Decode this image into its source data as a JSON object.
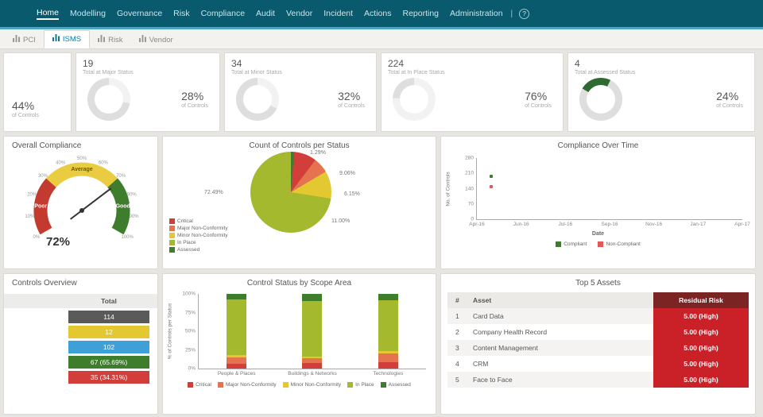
{
  "nav": {
    "items": [
      {
        "label": "Home",
        "active": true
      },
      {
        "label": "Modelling",
        "active": false
      },
      {
        "label": "Governance",
        "active": false
      },
      {
        "label": "Risk",
        "active": false
      },
      {
        "label": "Compliance",
        "active": false
      },
      {
        "label": "Audit",
        "active": false
      },
      {
        "label": "Vendor",
        "active": false
      },
      {
        "label": "Incident",
        "active": false
      },
      {
        "label": "Actions",
        "active": false
      },
      {
        "label": "Reporting",
        "active": false
      },
      {
        "label": "Administration",
        "active": false
      }
    ],
    "separator": "|",
    "help_label": "?"
  },
  "tabs": [
    {
      "label": "PCI",
      "active": false
    },
    {
      "label": "ISMS",
      "active": true
    },
    {
      "label": "Risk",
      "active": false
    },
    {
      "label": "Vendor",
      "active": false
    }
  ],
  "kpi_cards": [
    {
      "clipped": true,
      "count": "",
      "subtitle": "",
      "pct": "44%",
      "pct_caption": "of Controls",
      "pct_value": 44,
      "ring_color": "#dedede",
      "arc_color": "#f2f2f2",
      "arc_from": 0
    },
    {
      "clipped": false,
      "count": "19",
      "subtitle": "Total at Major Status",
      "pct": "28%",
      "pct_caption": "of Controls",
      "pct_value": 28,
      "ring_color": "#dedede",
      "arc_color": "#f2f2f2",
      "arc_from": 0
    },
    {
      "clipped": false,
      "count": "34",
      "subtitle": "Total at Minor Status",
      "pct": "32%",
      "pct_caption": "of Controls",
      "pct_value": 32,
      "ring_color": "#dedede",
      "arc_color": "#f2f2f2",
      "arc_from": 0
    },
    {
      "clipped": false,
      "count": "224",
      "subtitle": "Total at In Place Status",
      "pct": "76%",
      "pct_caption": "of Controls",
      "pct_value": 76,
      "ring_color": "#dedede",
      "arc_color": "#f2f2f2",
      "arc_from": 0
    },
    {
      "clipped": false,
      "count": "4",
      "subtitle": "Total at Assessed Status",
      "pct": "24%",
      "pct_caption": "of Controls",
      "pct_value": 24,
      "ring_color": "#dedede",
      "arc_color": "#2f6b31",
      "arc_from": 300
    }
  ],
  "gauge": {
    "type": "gauge",
    "title": "Overall Compliance",
    "value": 72,
    "value_label": "72%",
    "tick_labels": [
      "0%",
      "10%",
      "20%",
      "30%",
      "40%",
      "50%",
      "60%",
      "70%",
      "80%",
      "90%",
      "100%"
    ],
    "zones": [
      {
        "label": "Poor",
        "color": "#c23b2e",
        "label_color": "#ffffff",
        "from": 0,
        "to": 30
      },
      {
        "label": "Average",
        "color": "#e9cc3f",
        "label_color": "#6b5a10",
        "from": 30,
        "to": 70
      },
      {
        "label": "Good",
        "color": "#3e7d2c",
        "label_color": "#ffffff",
        "from": 70,
        "to": 100
      }
    ]
  },
  "pie_chart": {
    "type": "pie",
    "title": "Count of Controls per Status",
    "slices": [
      {
        "name": "Assessed",
        "value": 1.29,
        "label": "1.29%",
        "color": "#3e7d2c"
      },
      {
        "name": "Critical",
        "value": 9.06,
        "label": "9.06%",
        "color": "#d23f3a"
      },
      {
        "name": "Major Non-Conformity",
        "value": 6.15,
        "label": "6.15%",
        "color": "#e57350"
      },
      {
        "name": "Minor Non-Conformity",
        "value": 11.0,
        "label": "11.00%",
        "color": "#e3c832"
      },
      {
        "name": "In Place",
        "value": 72.49,
        "label": "72.49%",
        "color": "#a4b92e"
      }
    ]
  },
  "line_chart": {
    "type": "line",
    "title": "Compliance Over Time",
    "ylabel": "No. of Controls",
    "xlabel": "Date",
    "ymax": 280,
    "yticks": [
      0,
      70,
      140,
      210,
      280
    ],
    "xticks": [
      "Apr-16",
      "Jun-16",
      "Jul-16",
      "Sep-16",
      "Nov-16",
      "Jan-17",
      "Apr-17"
    ],
    "series": [
      {
        "name": "Compliant",
        "color": "#3e7d2c",
        "points": [
          {
            "x_frac": 0.055,
            "y": 196
          }
        ]
      },
      {
        "name": "Non-Compliant",
        "color": "#e25757",
        "points": [
          {
            "x_frac": 0.055,
            "y": 150
          }
        ]
      }
    ]
  },
  "controls_overview": {
    "type": "table",
    "title": "Controls Overview",
    "total_header": "Total",
    "rows": [
      {
        "label": "",
        "value": "114",
        "color": "#5a5a5a"
      },
      {
        "label": "",
        "value": "12",
        "color": "#e3c832"
      },
      {
        "label": "",
        "value": "102",
        "color": "#3da0d6"
      },
      {
        "label": "",
        "value": "67 (65.69%)",
        "color": "#3e7d2c"
      },
      {
        "label": "",
        "value": "35 (34.31%)",
        "color": "#d23f3a"
      }
    ]
  },
  "bar_chart": {
    "type": "stacked-bar",
    "title": "Control Status by Scope Area",
    "ylabel": "% of Controls per Status",
    "yticks": [
      "0%",
      "25%",
      "50%",
      "75%",
      "100%"
    ],
    "categories": [
      "People & Places",
      "Buildings & Networks",
      "Technologies"
    ],
    "series": [
      {
        "name": "Critical",
        "color": "#d23f3a",
        "values": [
          6,
          7,
          9
        ]
      },
      {
        "name": "Major Non-Conformity",
        "color": "#e57350",
        "values": [
          9,
          7,
          11
        ]
      },
      {
        "name": "Minor Non-Conformity",
        "color": "#e3c832",
        "values": [
          3,
          2,
          3
        ]
      },
      {
        "name": "In Place",
        "color": "#a4b92e",
        "values": [
          75,
          74,
          69
        ]
      },
      {
        "name": "Assessed",
        "color": "#3e7d2c",
        "values": [
          7,
          10,
          8
        ]
      }
    ]
  },
  "top_assets": {
    "type": "table",
    "title": "Top 5 Assets",
    "columns": [
      "#",
      "Asset",
      "Residual Risk"
    ],
    "risk_header_bg": "#7a2424",
    "risk_cell_bg": "#ca2128",
    "rows": [
      {
        "num": "1",
        "asset": "Card Data",
        "risk": "5.00 (High)"
      },
      {
        "num": "2",
        "asset": "Company Health Record",
        "risk": "5.00 (High)"
      },
      {
        "num": "3",
        "asset": "Content Management",
        "risk": "5.00 (High)"
      },
      {
        "num": "4",
        "asset": "CRM",
        "risk": "5.00 (High)"
      },
      {
        "num": "5",
        "asset": "Face to Face",
        "risk": "5.00 (High)"
      }
    ]
  }
}
